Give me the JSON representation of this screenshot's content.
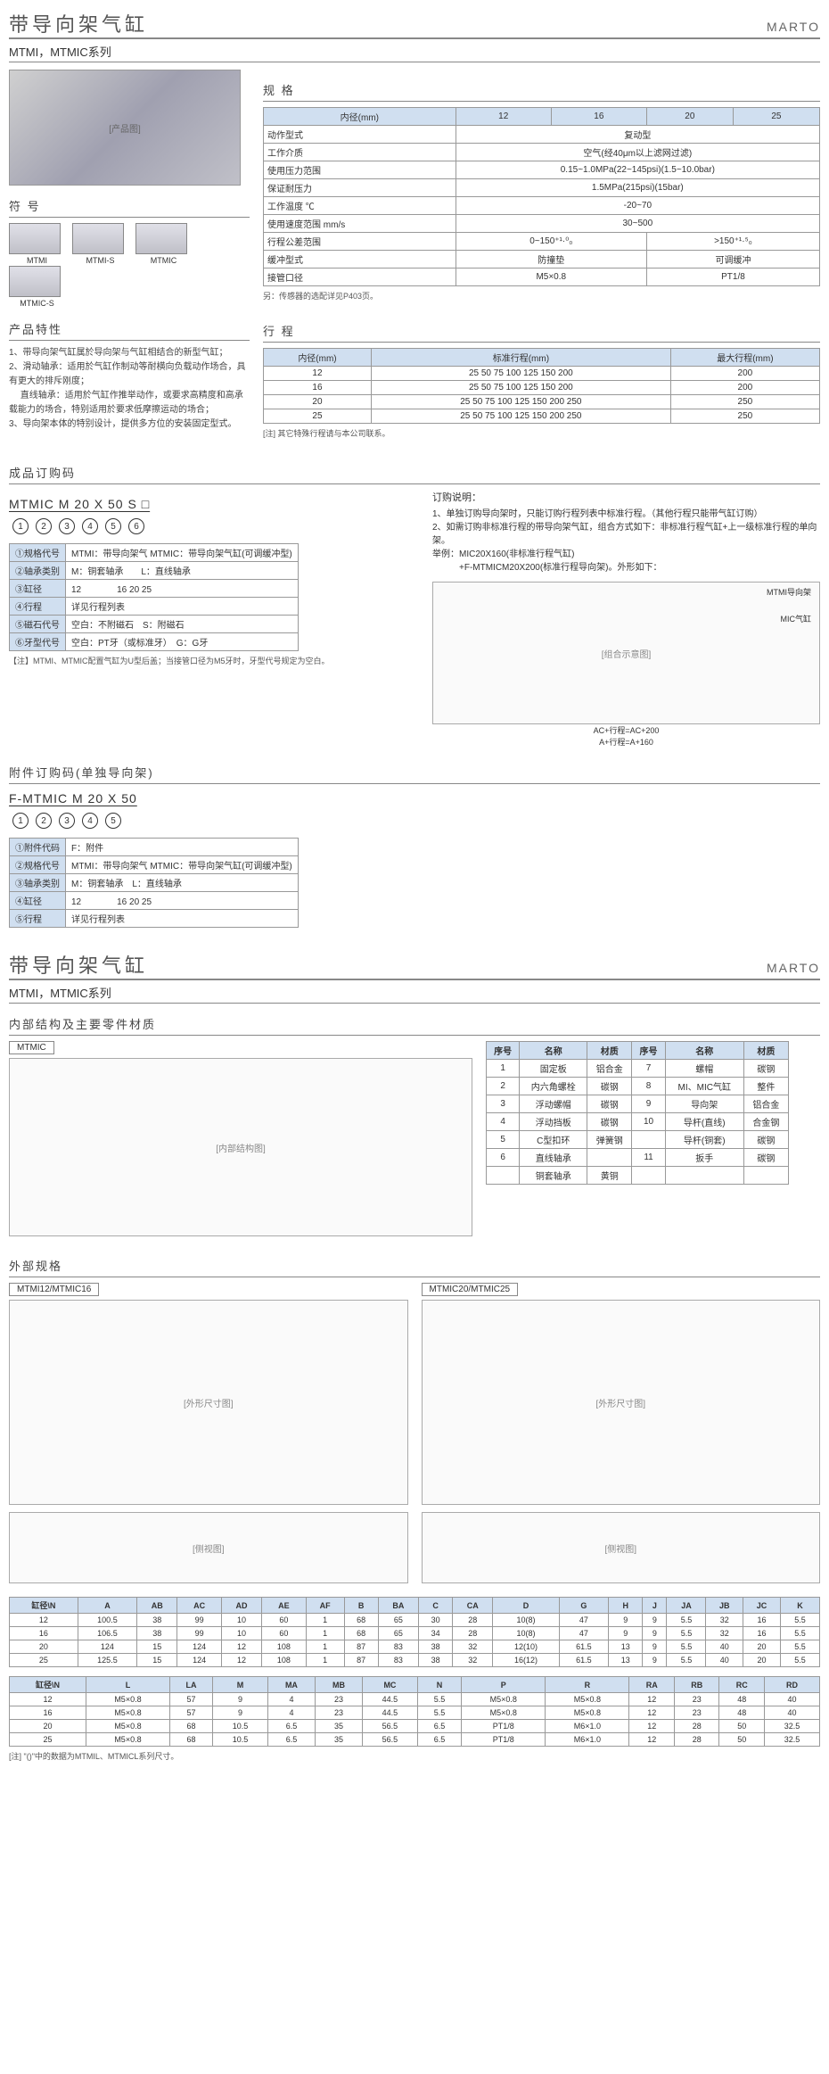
{
  "header": {
    "title": "带导向架气缸",
    "brand": "MARTO",
    "series": "MTMI，MTMIC系列"
  },
  "spec": {
    "title": "规 格",
    "headers": [
      "内径(mm)",
      "12",
      "16",
      "20",
      "25"
    ],
    "rows": [
      {
        "label": "动作型式",
        "span": "复动型"
      },
      {
        "label": "工作介质",
        "span": "空气(经40μm以上滤网过滤)"
      },
      {
        "label": "使用压力范围",
        "span": "0.15~1.0MPa(22~145psi)(1.5~10.0bar)"
      },
      {
        "label": "保证耐压力",
        "span": "1.5MPa(215psi)(15bar)"
      },
      {
        "label": "工作温度 ℃",
        "span": "-20~70"
      },
      {
        "label": "使用速度范围 mm/s",
        "span": "30~500"
      },
      {
        "label": "行程公差范围",
        "cells": [
          "0~150⁺¹·⁰₀",
          ">150⁺¹·⁵₀"
        ],
        "colspan": 2
      },
      {
        "label": "缓冲型式",
        "cells": [
          "防撞垫",
          "可调缓冲"
        ],
        "colspan": 2
      },
      {
        "label": "接管口径",
        "cells": [
          "M5×0.8",
          "PT1/8"
        ],
        "colspan": 2
      }
    ],
    "note": "另：传感器的选配详见P403页。"
  },
  "symbols": {
    "title": "符 号",
    "items": [
      "MTMI",
      "MTMI-S",
      "MTMIC",
      "MTMIC-S"
    ]
  },
  "chars": {
    "title": "产品特性",
    "lines": [
      "1、带导向架气缸属於导向架与气缸相结合的新型气缸；",
      "2、滑动轴承：适用於气缸作制动等耐横向负载动作场合，具有更大的排斥刚度；",
      "　 直线轴承：适用於气缸作推举动作，或要求高精度和高承载能力的场合，特别适用於要求低摩擦运动的场合；",
      "3、导向架本体的特别设计，提供多方位的安装固定型式。"
    ]
  },
  "stroke": {
    "title": "行 程",
    "headers": [
      "内径(mm)",
      "标准行程(mm)",
      "最大行程(mm)"
    ],
    "rows": [
      [
        "12",
        "25 50 75 100 125 150 200",
        "200"
      ],
      [
        "16",
        "25 50 75 100 125 150 200",
        "200"
      ],
      [
        "20",
        "25 50 75 100 125 150 200 250",
        "250"
      ],
      [
        "25",
        "25 50 75 100 125 150 200 250",
        "250"
      ]
    ],
    "note": "[注] 其它特殊行程请与本公司联系。"
  },
  "orderMain": {
    "title": "成品订购码",
    "code": "MTMIC M 20 X 50 S □",
    "nums": [
      "1",
      "2",
      "3",
      "4",
      "5",
      "6"
    ],
    "table": [
      [
        "①规格代号",
        "MTMI：带导向架气 MTMIC：带导向架气缸(可调缓冲型)"
      ],
      [
        "②轴承类别",
        "M：铜套轴承　　L：直线轴承"
      ],
      [
        "③缸径",
        "12　　　　16 20 25"
      ],
      [
        "④行程",
        "详见行程列表"
      ],
      [
        "⑤磁石代号",
        "空白：不附磁石　S：附磁石"
      ],
      [
        "⑥牙型代号",
        "空白：PT牙（或标准牙）　G：G牙"
      ]
    ],
    "footnote": "【注】MTMI、MTMIC配置气缸为U型后盖；当接管口径为M5牙时，牙型代号规定为空白。"
  },
  "orderNote": {
    "title": "订购说明：",
    "lines": [
      "1、单独订购导向架时，只能订购行程列表中标准行程。（其他行程只能带气缸订购）",
      "2、如需订购非标准行程的带导向架气缸，组合方式如下：非标准行程气缸+上一级标准行程的单向架。",
      "举例：MIC20X160(非标准行程气缸)",
      "　　　+F-MTMICM20X200(标准行程导向架)。外形如下："
    ],
    "labels": {
      "frame": "MTMI导向架",
      "cyl": "MIC气缸",
      "dim1": "AC+行程=AC+200",
      "dim2": "A+行程=A+160"
    }
  },
  "orderAcc": {
    "title": "附件订购码(单独导向架)",
    "code": "F-MTMIC M 20 X 50",
    "nums": [
      "1",
      "2",
      "3",
      "4",
      "5"
    ],
    "table": [
      [
        "①附件代码",
        "F：附件"
      ],
      [
        "②规格代号",
        "MTMI：带导向架气 MTMIC：带导向架气缸(可调缓冲型)"
      ],
      [
        "③轴承类别",
        "M：铜套轴承　L：直线轴承"
      ],
      [
        "④缸径",
        "12　　　　16 20 25"
      ],
      [
        "⑤行程",
        "详见行程列表"
      ]
    ]
  },
  "parts": {
    "title": "内部结构及主要零件材质",
    "label": "MTMIC",
    "headers": [
      "序号",
      "名称",
      "材质",
      "序号",
      "名称",
      "材质"
    ],
    "rows": [
      [
        "1",
        "固定板",
        "铝合金",
        "7",
        "螺帽",
        "碳钢"
      ],
      [
        "2",
        "内六角螺栓",
        "碳钢",
        "8",
        "MI、MIC气缸",
        "整件"
      ],
      [
        "3",
        "浮动螺帽",
        "碳钢",
        "9",
        "导向架",
        "铝合金"
      ],
      [
        "4",
        "浮动挡板",
        "碳钢",
        "10",
        "导杆(直线)",
        "合金钢"
      ],
      [
        "5",
        "C型扣环",
        "弹簧钢",
        "",
        "导杆(铜套)",
        "碳钢"
      ],
      [
        "6",
        "直线轴承",
        "",
        "11",
        "扳手",
        "碳钢"
      ],
      [
        "",
        "铜套轴承",
        "黄铜",
        "",
        "",
        ""
      ]
    ]
  },
  "external": {
    "title": "外部规格",
    "left": "MTMI12/MTMIC16",
    "right": "MTMIC20/MTMIC25"
  },
  "dims1": {
    "headers": [
      "缸径\\N",
      "A",
      "AB",
      "AC",
      "AD",
      "AE",
      "AF",
      "B",
      "BA",
      "C",
      "CA",
      "D",
      "G",
      "H",
      "J",
      "JA",
      "JB",
      "JC",
      "K"
    ],
    "rows": [
      [
        "12",
        "100.5",
        "38",
        "99",
        "10",
        "60",
        "1",
        "68",
        "65",
        "30",
        "28",
        "10(8)",
        "47",
        "9",
        "9",
        "5.5",
        "32",
        "16",
        "5.5"
      ],
      [
        "16",
        "106.5",
        "38",
        "99",
        "10",
        "60",
        "1",
        "68",
        "65",
        "34",
        "28",
        "10(8)",
        "47",
        "9",
        "9",
        "5.5",
        "32",
        "16",
        "5.5"
      ],
      [
        "20",
        "124",
        "15",
        "124",
        "12",
        "108",
        "1",
        "87",
        "83",
        "38",
        "32",
        "12(10)",
        "61.5",
        "13",
        "9",
        "5.5",
        "40",
        "20",
        "5.5"
      ],
      [
        "25",
        "125.5",
        "15",
        "124",
        "12",
        "108",
        "1",
        "87",
        "83",
        "38",
        "32",
        "16(12)",
        "61.5",
        "13",
        "9",
        "5.5",
        "40",
        "20",
        "5.5"
      ]
    ]
  },
  "dims2": {
    "headers": [
      "缸径\\N",
      "L",
      "LA",
      "M",
      "MA",
      "MB",
      "MC",
      "N",
      "P",
      "R",
      "RA",
      "RB",
      "RC",
      "RD"
    ],
    "rows": [
      [
        "12",
        "M5×0.8",
        "57",
        "9",
        "4",
        "23",
        "44.5",
        "5.5",
        "M5×0.8",
        "M5×0.8",
        "12",
        "23",
        "48",
        "40"
      ],
      [
        "16",
        "M5×0.8",
        "57",
        "9",
        "4",
        "23",
        "44.5",
        "5.5",
        "M5×0.8",
        "M5×0.8",
        "12",
        "23",
        "48",
        "40"
      ],
      [
        "20",
        "M5×0.8",
        "68",
        "10.5",
        "6.5",
        "35",
        "56.5",
        "6.5",
        "PT1/8",
        "M6×1.0",
        "12",
        "28",
        "50",
        "32.5"
      ],
      [
        "25",
        "M5×0.8",
        "68",
        "10.5",
        "6.5",
        "35",
        "56.5",
        "6.5",
        "PT1/8",
        "M6×1.0",
        "12",
        "28",
        "50",
        "32.5"
      ]
    ],
    "note": "[注] \"()\"中的数据为MTMIL、MTMICL系列尺寸。"
  }
}
